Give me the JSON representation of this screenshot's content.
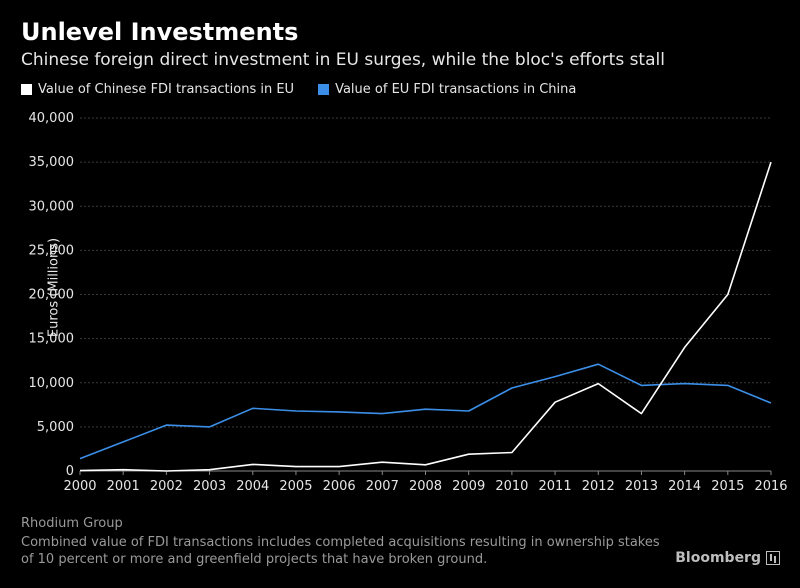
{
  "header": {
    "title": "Unlevel Investments",
    "subtitle": "Chinese foreign direct investment in EU surges, while the bloc's efforts stall"
  },
  "footer": {
    "source": "Rhodium Group",
    "note": "Combined value of FDI transactions includes completed acquisitions resulting in ownership stakes of 10 percent or more and greenfield projects that have broken ground.",
    "brand": "Bloomberg"
  },
  "chart_data": {
    "type": "line",
    "ylabel": "Euros (Millions)",
    "ylim": [
      0,
      40000
    ],
    "yticks": [
      "0",
      "5,000",
      "10,000",
      "15,000",
      "20,000",
      "25,000",
      "30,000",
      "35,000",
      "40,000"
    ],
    "ytick_values": [
      0,
      5000,
      10000,
      15000,
      20000,
      25000,
      30000,
      35000,
      40000
    ],
    "x": [
      "2000",
      "2001",
      "2002",
      "2003",
      "2004",
      "2005",
      "2006",
      "2007",
      "2008",
      "2009",
      "2010",
      "2011",
      "2012",
      "2013",
      "2014",
      "2015",
      "2016"
    ],
    "grid": true,
    "legend_position": "top-left",
    "series": [
      {
        "name": "Value of Chinese FDI transactions in EU",
        "color": "#ffffff",
        "values": [
          50,
          150,
          0,
          150,
          750,
          500,
          500,
          1000,
          700,
          1900,
          2100,
          7800,
          9900,
          6500,
          14000,
          20000,
          35000
        ]
      },
      {
        "name": "Value of EU FDI transactions in China",
        "color": "#3b8fe8",
        "values": [
          1400,
          3300,
          5200,
          5000,
          7100,
          6800,
          6700,
          6500,
          7000,
          6800,
          9400,
          10700,
          12100,
          9700,
          9900,
          9700,
          7700
        ]
      }
    ]
  }
}
